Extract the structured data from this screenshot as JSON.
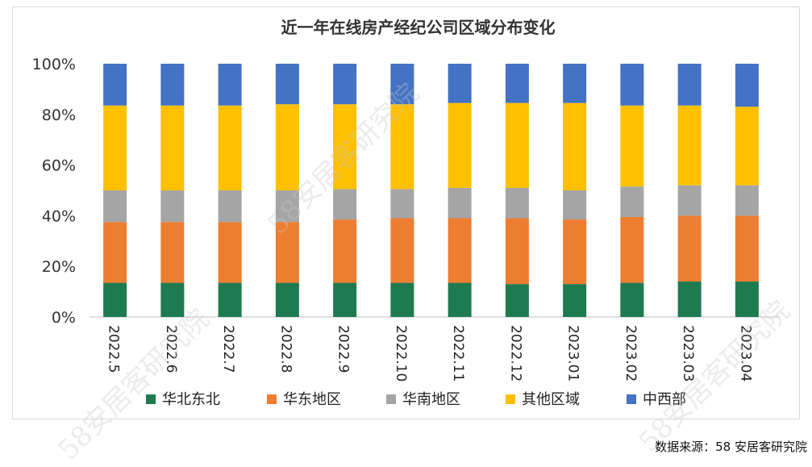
{
  "chart_data": {
    "type": "bar",
    "stacked": true,
    "percent": true,
    "title": "近一年在线房产经纪公司区域分布变化",
    "categories": [
      "2022.5",
      "2022.6",
      "2022.7",
      "2022.8",
      "2022.9",
      "2022.10",
      "2022.11",
      "2022.12",
      "2023.01",
      "2023.02",
      "2023.03",
      "2023.04"
    ],
    "yticks": [
      "0%",
      "20%",
      "40%",
      "60%",
      "80%",
      "100%"
    ],
    "ylim": [
      0,
      100
    ],
    "series": [
      {
        "name": "华北东北",
        "color": "#1e7b4f",
        "values": [
          13.5,
          13.5,
          13.5,
          13.5,
          13.5,
          13.5,
          13.5,
          13.0,
          13.0,
          13.5,
          14.0,
          14.0
        ]
      },
      {
        "name": "华东地区",
        "color": "#ed7d31",
        "values": [
          24.0,
          24.0,
          24.0,
          24.0,
          25.0,
          25.5,
          25.5,
          26.0,
          25.5,
          26.0,
          26.0,
          26.0
        ]
      },
      {
        "name": "华南地区",
        "color": "#a5a5a5",
        "values": [
          12.5,
          12.5,
          12.5,
          12.5,
          12.0,
          11.5,
          12.0,
          12.0,
          11.5,
          12.0,
          12.0,
          12.0
        ]
      },
      {
        "name": "其他区域",
        "color": "#ffc000",
        "values": [
          33.5,
          33.5,
          33.5,
          34.0,
          33.5,
          33.5,
          33.5,
          33.5,
          34.5,
          32.0,
          31.5,
          31.0
        ]
      },
      {
        "name": "中西部",
        "color": "#4472c4",
        "values": [
          16.5,
          16.5,
          16.5,
          16.0,
          16.0,
          16.0,
          15.5,
          15.5,
          15.5,
          16.5,
          16.5,
          17.0
        ]
      }
    ]
  },
  "source_label": "数据来源：58 安居客研究院",
  "watermark": "58安居客研究院"
}
